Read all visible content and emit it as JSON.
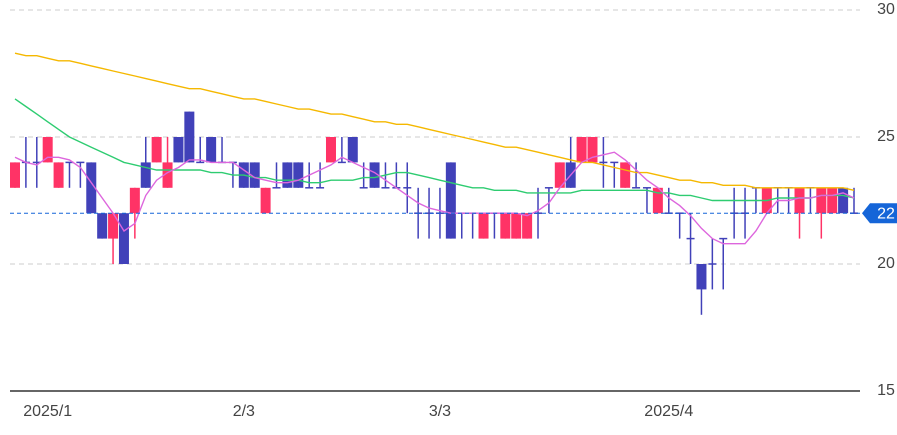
{
  "chart_data": {
    "type": "candlestick",
    "categories": [
      null,
      null,
      null,
      "2025/1",
      null,
      null,
      null,
      null,
      null,
      null,
      null,
      null,
      null,
      null,
      null,
      null,
      null,
      null,
      null,
      null,
      null,
      "2/3",
      null,
      null,
      null,
      null,
      null,
      null,
      null,
      null,
      null,
      null,
      null,
      null,
      null,
      null,
      null,
      null,
      null,
      "3/3",
      null,
      null,
      null,
      null,
      null,
      null,
      null,
      null,
      null,
      null,
      null,
      null,
      null,
      null,
      null,
      null,
      null,
      null,
      null,
      null,
      "2025/4",
      null,
      null,
      null,
      null,
      null,
      null,
      null,
      null,
      null,
      null,
      null,
      null,
      null,
      null,
      null,
      null,
      null
    ],
    "open": [
      23,
      24,
      24,
      24,
      23,
      24,
      24,
      24,
      22,
      21,
      22,
      22,
      24,
      24,
      23,
      25,
      26,
      24,
      25,
      24,
      24,
      24,
      24,
      22,
      23,
      24,
      24,
      23,
      23,
      24,
      24,
      25,
      23,
      24,
      23,
      23,
      23,
      22,
      22,
      22,
      24,
      22,
      22,
      21,
      22,
      21,
      21,
      21,
      22,
      23,
      23,
      24,
      24,
      24,
      24,
      24,
      23,
      23,
      23,
      22,
      22,
      22,
      21,
      20,
      20,
      21,
      22,
      22,
      23,
      22,
      23,
      23,
      22,
      23,
      22,
      22,
      23,
      22
    ],
    "high": [
      24,
      25,
      25,
      25,
      24,
      24,
      24,
      24,
      22,
      22,
      22,
      23,
      25,
      25,
      25,
      25,
      26,
      25,
      25,
      25,
      24,
      24,
      24,
      23,
      24,
      24,
      24,
      24,
      24,
      25,
      25,
      25,
      24,
      24,
      24,
      24,
      24,
      23,
      23,
      23,
      24,
      22,
      22,
      22,
      22,
      22,
      22,
      22,
      23,
      23,
      24,
      25,
      25,
      25,
      25,
      24,
      24,
      24,
      23,
      23,
      23,
      22,
      22,
      20,
      21,
      21,
      23,
      23,
      23,
      23,
      23,
      23,
      23,
      23,
      23,
      23,
      23,
      23
    ],
    "low": [
      23,
      23,
      23,
      24,
      23,
      23,
      23,
      22,
      21,
      20,
      20,
      21,
      23,
      24,
      23,
      24,
      24,
      24,
      24,
      24,
      23,
      23,
      23,
      22,
      23,
      23,
      23,
      23,
      23,
      24,
      24,
      24,
      23,
      23,
      23,
      23,
      22,
      21,
      21,
      21,
      21,
      21,
      21,
      21,
      21,
      21,
      21,
      21,
      21,
      22,
      23,
      23,
      24,
      24,
      23,
      23,
      23,
      23,
      22,
      22,
      22,
      21,
      20,
      18,
      19,
      19,
      21,
      21,
      22,
      22,
      22,
      22,
      21,
      22,
      21,
      22,
      22,
      22
    ],
    "close": [
      24,
      24,
      24,
      25,
      24,
      24,
      24,
      22,
      21,
      22,
      20,
      23,
      23,
      25,
      24,
      24,
      24,
      24,
      24,
      24,
      24,
      23,
      23,
      23,
      23,
      23,
      23,
      23,
      23,
      25,
      24,
      24,
      23,
      23,
      23,
      23,
      23,
      22,
      22,
      22,
      21,
      22,
      22,
      22,
      22,
      22,
      22,
      22,
      22,
      23,
      24,
      23,
      25,
      25,
      24,
      24,
      24,
      23,
      23,
      23,
      22,
      22,
      21,
      19,
      20,
      21,
      22,
      22,
      23,
      23,
      23,
      23,
      23,
      23,
      23,
      23,
      22,
      22
    ],
    "up_color": "#ff3366",
    "down_color": "#4141b9",
    "lines": [
      {
        "color": "#f5b800",
        "values": [
          28.3,
          28.2,
          28.2,
          28.1,
          28.0,
          28.0,
          27.9,
          27.8,
          27.7,
          27.6,
          27.5,
          27.4,
          27.3,
          27.2,
          27.1,
          27.0,
          26.9,
          26.9,
          26.8,
          26.7,
          26.6,
          26.5,
          26.5,
          26.4,
          26.3,
          26.2,
          26.1,
          26.1,
          26.0,
          25.9,
          25.9,
          25.8,
          25.7,
          25.6,
          25.6,
          25.5,
          25.5,
          25.4,
          25.3,
          25.2,
          25.1,
          25.0,
          24.9,
          24.8,
          24.7,
          24.6,
          24.6,
          24.5,
          24.4,
          24.3,
          24.2,
          24.1,
          24.0,
          24.0,
          23.9,
          23.8,
          23.7,
          23.6,
          23.6,
          23.5,
          23.4,
          23.3,
          23.3,
          23.2,
          23.2,
          23.1,
          23.1,
          23.1,
          23.0,
          23.0,
          23.0,
          23.0,
          23.0,
          23.0,
          23.0,
          23.0,
          23.0,
          22.9
        ]
      },
      {
        "color": "#2ecc71",
        "values": [
          26.5,
          26.2,
          25.9,
          25.6,
          25.3,
          25.0,
          24.8,
          24.6,
          24.4,
          24.2,
          24.0,
          23.9,
          23.8,
          23.7,
          23.7,
          23.7,
          23.7,
          23.7,
          23.6,
          23.6,
          23.5,
          23.5,
          23.4,
          23.4,
          23.3,
          23.3,
          23.3,
          23.2,
          23.2,
          23.3,
          23.3,
          23.3,
          23.4,
          23.4,
          23.5,
          23.6,
          23.6,
          23.5,
          23.4,
          23.3,
          23.2,
          23.1,
          23.0,
          23.0,
          22.9,
          22.9,
          22.9,
          22.8,
          22.8,
          22.8,
          22.8,
          22.8,
          22.9,
          22.9,
          22.9,
          22.9,
          22.9,
          22.9,
          22.9,
          22.8,
          22.8,
          22.7,
          22.7,
          22.6,
          22.5,
          22.5,
          22.5,
          22.5,
          22.5,
          22.5,
          22.6,
          22.6,
          22.6,
          22.6,
          22.7,
          22.7,
          22.7,
          22.6
        ]
      },
      {
        "color": "#dd66dd",
        "values": [
          24.2,
          24.0,
          23.9,
          24.2,
          24.2,
          24.1,
          23.8,
          23.2,
          22.6,
          22.0,
          21.3,
          21.6,
          22.7,
          23.3,
          23.6,
          23.8,
          24.1,
          24.1,
          24.0,
          24.0,
          24.0,
          23.7,
          23.4,
          23.3,
          23.2,
          23.2,
          23.3,
          23.5,
          23.7,
          23.9,
          24.2,
          24.0,
          23.8,
          23.6,
          23.3,
          23.0,
          22.7,
          22.4,
          22.2,
          22.1,
          22.0,
          22.0,
          22.0,
          22.0,
          22.0,
          22.0,
          22.0,
          21.9,
          22.1,
          22.4,
          23.0,
          23.5,
          24.0,
          24.2,
          24.3,
          24.4,
          24.1,
          23.7,
          23.3,
          23.0,
          22.6,
          22.3,
          21.9,
          21.4,
          21.0,
          20.8,
          20.8,
          20.8,
          21.3,
          22.0,
          22.5,
          22.5,
          22.6,
          22.6,
          22.7,
          22.7,
          22.8,
          22.6
        ]
      }
    ],
    "last_value": 22,
    "last_color": "#1565d8",
    "ylim": [
      15,
      30
    ],
    "yticks": [
      15,
      20,
      25,
      30
    ],
    "grid": true
  }
}
